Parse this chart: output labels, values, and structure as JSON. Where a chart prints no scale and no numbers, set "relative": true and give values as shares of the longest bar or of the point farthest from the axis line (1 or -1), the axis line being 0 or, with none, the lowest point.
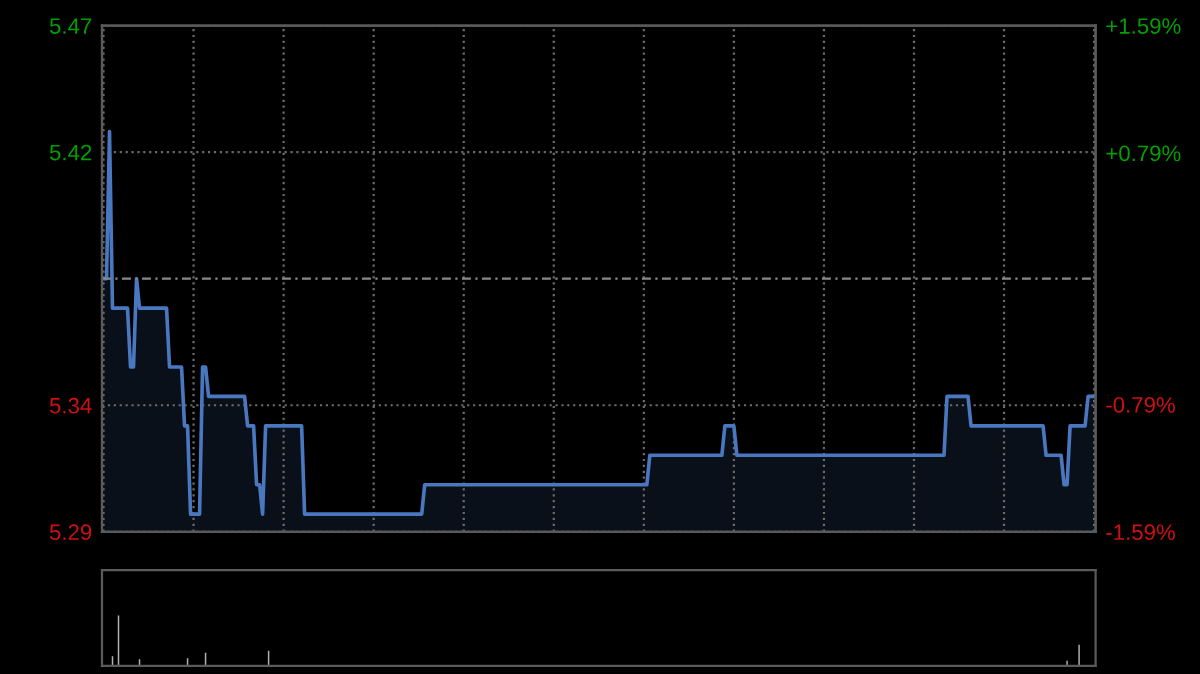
{
  "chart_data": [
    {
      "type": "area",
      "categories": [
        null,
        null,
        null,
        null,
        null,
        null,
        null,
        null,
        null,
        null,
        null,
        null,
        null,
        null,
        null,
        null,
        null,
        null,
        null,
        null,
        null,
        null,
        null,
        null,
        null,
        null,
        null,
        null,
        null,
        null,
        null,
        null,
        null,
        null,
        null,
        null,
        null,
        null,
        null,
        null,
        null,
        null,
        null,
        null,
        null,
        null,
        null,
        null,
        null,
        null,
        null,
        null,
        null,
        null,
        null,
        null,
        null,
        null,
        null,
        null,
        null,
        null,
        null,
        null,
        null,
        null,
        null,
        null,
        null,
        null,
        null,
        null,
        null,
        null,
        null,
        null,
        null,
        null,
        null,
        null,
        null,
        null,
        null,
        null,
        null,
        null,
        null,
        null,
        null,
        null,
        null,
        null,
        null,
        null,
        null,
        null,
        null,
        null,
        null,
        null,
        null,
        null,
        null,
        null,
        null,
        null,
        null,
        null,
        null,
        null,
        null,
        null,
        null,
        null,
        null,
        null,
        null,
        null,
        null,
        null,
        null,
        null,
        null,
        null,
        null,
        null,
        null,
        null,
        null,
        null,
        null,
        null,
        null,
        null,
        null,
        null,
        null,
        null,
        null,
        null,
        null,
        null,
        null,
        null,
        null,
        null,
        null,
        null,
        null,
        null,
        null,
        null,
        null,
        null,
        null,
        null,
        null,
        null,
        null,
        null,
        null,
        null,
        null,
        null,
        null,
        null,
        null,
        null,
        null,
        null,
        null,
        null,
        null,
        null,
        null,
        null,
        null,
        null,
        null,
        null,
        null,
        null,
        null,
        null,
        null,
        null,
        null,
        null,
        null,
        null,
        null,
        null,
        null,
        null,
        null,
        null,
        null,
        null,
        null,
        null,
        null,
        null,
        null,
        null,
        null,
        null,
        null,
        null,
        null,
        null,
        null,
        null,
        null,
        null,
        null,
        null,
        null,
        null,
        null,
        null,
        null,
        null,
        null,
        null,
        null,
        null,
        null,
        null,
        null,
        null,
        null,
        null,
        null,
        null,
        null,
        null,
        null,
        null,
        null,
        null,
        null,
        null,
        null,
        null,
        null,
        null,
        null,
        null,
        null,
        null,
        null,
        null,
        null,
        null,
        null,
        null,
        null,
        null,
        null,
        null,
        null,
        null,
        null,
        null,
        null,
        null,
        null,
        null,
        null,
        null,
        null,
        null,
        null,
        null,
        null,
        null,
        null,
        null,
        null,
        null,
        null,
        null,
        null,
        null,
        null,
        null,
        null,
        null,
        null,
        null,
        null,
        null,
        null,
        null,
        null,
        null,
        null,
        null,
        null,
        null,
        null,
        null,
        null,
        null,
        null,
        null,
        null,
        null,
        null,
        null,
        null,
        null,
        null,
        null,
        null,
        null,
        null,
        null,
        null,
        null,
        null,
        null,
        null,
        null,
        null,
        null,
        null,
        null,
        null,
        null,
        null
      ],
      "series": [
        {
          "color": "#4a78c0",
          "values": [
            5.38,
            5.38,
            5.43,
            5.37,
            5.37,
            5.37,
            5.37,
            5.37,
            5.37,
            5.35,
            5.35,
            5.38,
            5.37,
            5.37,
            5.37,
            5.37,
            5.37,
            5.37,
            5.37,
            5.37,
            5.37,
            5.37,
            5.35,
            5.35,
            5.35,
            5.35,
            5.35,
            5.33,
            5.33,
            5.3,
            5.3,
            5.3,
            5.3,
            5.35,
            5.35,
            5.34,
            5.34,
            5.34,
            5.34,
            5.34,
            5.34,
            5.34,
            5.34,
            5.34,
            5.34,
            5.34,
            5.34,
            5.34,
            5.33,
            5.33,
            5.33,
            5.31,
            5.31,
            5.3,
            5.33,
            5.33,
            5.33,
            5.33,
            5.33,
            5.33,
            5.33,
            5.33,
            5.33,
            5.33,
            5.33,
            5.33,
            5.33,
            5.3,
            5.3,
            5.3,
            5.3,
            5.3,
            5.3,
            5.3,
            5.3,
            5.3,
            5.3,
            5.3,
            5.3,
            5.3,
            5.3,
            5.3,
            5.3,
            5.3,
            5.3,
            5.3,
            5.3,
            5.3,
            5.3,
            5.3,
            5.3,
            5.3,
            5.3,
            5.3,
            5.3,
            5.3,
            5.3,
            5.3,
            5.3,
            5.3,
            5.3,
            5.3,
            5.3,
            5.3,
            5.3,
            5.3,
            5.3,
            5.31,
            5.31,
            5.31,
            5.31,
            5.31,
            5.31,
            5.31,
            5.31,
            5.31,
            5.31,
            5.31,
            5.31,
            5.31,
            5.31,
            5.31,
            5.31,
            5.31,
            5.31,
            5.31,
            5.31,
            5.31,
            5.31,
            5.31,
            5.31,
            5.31,
            5.31,
            5.31,
            5.31,
            5.31,
            5.31,
            5.31,
            5.31,
            5.31,
            5.31,
            5.31,
            5.31,
            5.31,
            5.31,
            5.31,
            5.31,
            5.31,
            5.31,
            5.31,
            5.31,
            5.31,
            5.31,
            5.31,
            5.31,
            5.31,
            5.31,
            5.31,
            5.31,
            5.31,
            5.31,
            5.31,
            5.31,
            5.31,
            5.31,
            5.31,
            5.31,
            5.31,
            5.31,
            5.31,
            5.31,
            5.31,
            5.31,
            5.31,
            5.31,
            5.31,
            5.31,
            5.31,
            5.31,
            5.31,
            5.31,
            5.31,
            5.32,
            5.32,
            5.32,
            5.32,
            5.32,
            5.32,
            5.32,
            5.32,
            5.32,
            5.32,
            5.32,
            5.32,
            5.32,
            5.32,
            5.32,
            5.32,
            5.32,
            5.32,
            5.32,
            5.32,
            5.32,
            5.32,
            5.32,
            5.32,
            5.32,
            5.33,
            5.33,
            5.33,
            5.33,
            5.32,
            5.32,
            5.32,
            5.32,
            5.32,
            5.32,
            5.32,
            5.32,
            5.32,
            5.32,
            5.32,
            5.32,
            5.32,
            5.32,
            5.32,
            5.32,
            5.32,
            5.32,
            5.32,
            5.32,
            5.32,
            5.32,
            5.32,
            5.32,
            5.32,
            5.32,
            5.32,
            5.32,
            5.32,
            5.32,
            5.32,
            5.32,
            5.32,
            5.32,
            5.32,
            5.32,
            5.32,
            5.32,
            5.32,
            5.32,
            5.32,
            5.32,
            5.32,
            5.32,
            5.32,
            5.32,
            5.32,
            5.32,
            5.32,
            5.32,
            5.32,
            5.32,
            5.32,
            5.32,
            5.32,
            5.32,
            5.32,
            5.32,
            5.32,
            5.32,
            5.32,
            5.32,
            5.32,
            5.32,
            5.32,
            5.32,
            5.32,
            5.32,
            5.32,
            5.32,
            5.34,
            5.34,
            5.34,
            5.34,
            5.34,
            5.34,
            5.34,
            5.34,
            5.33,
            5.33,
            5.33,
            5.33,
            5.33,
            5.33,
            5.33,
            5.33,
            5.33,
            5.33,
            5.33,
            5.33,
            5.33,
            5.33,
            5.33,
            5.33,
            5.33,
            5.33,
            5.33,
            5.33,
            5.33,
            5.33,
            5.33,
            5.33,
            5.33,
            5.32,
            5.32,
            5.32,
            5.32,
            5.32,
            5.32,
            5.31,
            5.31,
            5.33,
            5.33,
            5.33,
            5.33,
            5.33,
            5.33,
            5.34,
            5.34,
            5.34
          ]
        }
      ],
      "ylim": [
        5.294,
        5.466
      ],
      "yticks": [
        {
          "value": 5.466,
          "label": "5.47"
        },
        {
          "value": 5.423,
          "label": "5.42"
        },
        {
          "value": 5.337,
          "label": "5.34"
        },
        {
          "value": 5.294,
          "label": "5.29"
        }
      ],
      "y2lim": [
        -1.59,
        1.59
      ],
      "y2ticks": [
        {
          "value": 1.59,
          "label": "+1.59%"
        },
        {
          "value": 0.79,
          "label": "+0.79%"
        },
        {
          "value": -0.79,
          "label": "-0.79%"
        },
        {
          "value": -1.59,
          "label": "-1.59%"
        }
      ],
      "ref_lines": [
        {
          "axis": "y2",
          "value": 0,
          "line_style": "dashed"
        }
      ],
      "grid": true
    },
    {
      "type": "bar",
      "relative": true,
      "categories": [
        null,
        null,
        null,
        null,
        null,
        null,
        null,
        null,
        null,
        null,
        null,
        null,
        null,
        null,
        null,
        null,
        null,
        null,
        null,
        null,
        null,
        null,
        null,
        null,
        null,
        null,
        null,
        null,
        null,
        null,
        null,
        null,
        null,
        null,
        null,
        null,
        null,
        null,
        null,
        null,
        null,
        null,
        null,
        null,
        null,
        null,
        null,
        null,
        null,
        null,
        null,
        null,
        null,
        null,
        null,
        null,
        null,
        null,
        null,
        null,
        null,
        null,
        null,
        null,
        null,
        null,
        null,
        null,
        null,
        null,
        null,
        null,
        null,
        null,
        null,
        null,
        null,
        null,
        null,
        null,
        null,
        null,
        null,
        null,
        null,
        null,
        null,
        null,
        null,
        null,
        null,
        null,
        null,
        null,
        null,
        null,
        null,
        null,
        null,
        null,
        null,
        null,
        null,
        null,
        null,
        null,
        null,
        null,
        null,
        null,
        null,
        null,
        null,
        null,
        null,
        null,
        null,
        null,
        null,
        null,
        null,
        null,
        null,
        null,
        null,
        null,
        null,
        null,
        null,
        null,
        null,
        null,
        null,
        null,
        null,
        null,
        null,
        null,
        null,
        null,
        null,
        null,
        null,
        null,
        null,
        null,
        null,
        null,
        null,
        null,
        null,
        null,
        null,
        null,
        null,
        null,
        null,
        null,
        null,
        null,
        null,
        null,
        null,
        null,
        null,
        null,
        null,
        null,
        null,
        null,
        null,
        null,
        null,
        null,
        null,
        null,
        null,
        null,
        null,
        null,
        null,
        null,
        null,
        null,
        null,
        null,
        null,
        null,
        null,
        null,
        null,
        null,
        null,
        null,
        null,
        null,
        null,
        null,
        null,
        null,
        null,
        null,
        null,
        null,
        null,
        null,
        null,
        null,
        null,
        null,
        null,
        null,
        null,
        null,
        null,
        null,
        null,
        null,
        null,
        null,
        null,
        null,
        null,
        null,
        null,
        null,
        null,
        null,
        null,
        null,
        null,
        null,
        null,
        null,
        null,
        null,
        null,
        null,
        null,
        null,
        null,
        null,
        null,
        null,
        null,
        null,
        null,
        null,
        null,
        null,
        null,
        null,
        null,
        null,
        null,
        null,
        null,
        null,
        null,
        null,
        null,
        null,
        null,
        null,
        null,
        null,
        null,
        null,
        null,
        null,
        null,
        null,
        null,
        null,
        null,
        null,
        null,
        null,
        null,
        null,
        null,
        null,
        null,
        null,
        null,
        null,
        null,
        null,
        null,
        null,
        null,
        null,
        null,
        null,
        null,
        null,
        null,
        null,
        null,
        null,
        null,
        null,
        null,
        null,
        null,
        null,
        null,
        null,
        null,
        null,
        null,
        null,
        null,
        null,
        null,
        null,
        null,
        null,
        null,
        null,
        null,
        null,
        null,
        null,
        null,
        null,
        null,
        null,
        null,
        null,
        null
      ],
      "series": [
        {
          "color": "#b0b0b0",
          "values": [
            0.02,
            0.02,
            0.02,
            0.19,
            0.02,
            1,
            0.02,
            0.02,
            0.02,
            0.02,
            0.02,
            0.02,
            0.13,
            0.02,
            0.02,
            0.02,
            0.02,
            0.02,
            0.02,
            0.02,
            0.02,
            0.02,
            0.02,
            0.02,
            0.02,
            0.02,
            0.02,
            0.02,
            0.15,
            0.02,
            0.02,
            0.02,
            0.02,
            0.02,
            0.26,
            0.02,
            0.02,
            0.02,
            0.02,
            0.02,
            0.02,
            0.02,
            0.02,
            0.02,
            0.02,
            0.02,
            0.02,
            0.02,
            0.02,
            0.02,
            0.02,
            0.02,
            0.02,
            0.02,
            0.02,
            0.3,
            0.02,
            0.02,
            0.02,
            0.02,
            0.02,
            0.02,
            0.02,
            0.02,
            0.02,
            0.02,
            0.02,
            0.02,
            0.02,
            0.02,
            0.02,
            0.02,
            0.02,
            0.02,
            0.02,
            0.02,
            0.02,
            0.02,
            0.02,
            0.02,
            0.02,
            0.02,
            0.02,
            0.02,
            0.02,
            0.02,
            0.02,
            0.02,
            0.02,
            0.02,
            0.02,
            0.02,
            0.02,
            0.02,
            0.02,
            0.02,
            0.02,
            0.02,
            0.02,
            0.02,
            0.02,
            0.02,
            0.02,
            0.02,
            0.02,
            0.02,
            0.02,
            0.02,
            0.02,
            0.02,
            0.02,
            0.02,
            0.02,
            0.02,
            0.02,
            0.02,
            0.02,
            0.02,
            0.02,
            0.02,
            0.02,
            0.02,
            0.02,
            0.02,
            0.02,
            0.02,
            0.02,
            0.02,
            0.02,
            0.02,
            0.02,
            0.02,
            0.02,
            0.02,
            0.02,
            0.02,
            0.02,
            0.02,
            0.02,
            0.02,
            0.02,
            0.02,
            0.02,
            0.02,
            0.02,
            0.02,
            0.02,
            0.02,
            0.02,
            0.02,
            0.02,
            0.02,
            0.02,
            0.02,
            0.02,
            0.02,
            0.02,
            0.02,
            0.02,
            0.02,
            0.02,
            0.02,
            0.02,
            0.02,
            0.02,
            0.02,
            0.02,
            0.02,
            0.02,
            0.02,
            0.02,
            0.02,
            0.02,
            0.02,
            0.02,
            0.02,
            0.02,
            0.02,
            0.02,
            0.02,
            0.02,
            0.02,
            0.02,
            0.02,
            0.02,
            0.02,
            0.02,
            0.02,
            0.02,
            0.02,
            0.02,
            0.02,
            0.02,
            0.02,
            0.02,
            0.02,
            0.02,
            0.02,
            0.02,
            0.02,
            0.02,
            0.02,
            0.02,
            0.02,
            0.02,
            0.02,
            0.02,
            0.02,
            0.02,
            0.02,
            0.02,
            0.02,
            0.02,
            0.02,
            0.02,
            0.02,
            0.02,
            0.02,
            0.02,
            0.02,
            0.02,
            0.02,
            0.02,
            0.02,
            0.02,
            0.02,
            0.02,
            0.02,
            0.02,
            0.02,
            0.02,
            0.02,
            0.02,
            0.02,
            0.02,
            0.02,
            0.02,
            0.02,
            0.02,
            0.02,
            0.02,
            0.02,
            0.02,
            0.02,
            0.02,
            0.02,
            0.02,
            0.02,
            0.02,
            0.02,
            0.02,
            0.02,
            0.02,
            0.02,
            0.02,
            0.02,
            0.02,
            0.02,
            0.02,
            0.02,
            0.02,
            0.02,
            0.02,
            0.02,
            0.02,
            0.02,
            0.02,
            0.02,
            0.02,
            0.02,
            0.02,
            0.02,
            0.02,
            0.02,
            0.02,
            0.02,
            0.02,
            0.02,
            0.02,
            0.02,
            0.02,
            0.02,
            0.02,
            0.02,
            0.02,
            0.02,
            0.02,
            0.02,
            0.02,
            0.02,
            0.02,
            0.02,
            0.02,
            0.02,
            0.02,
            0.02,
            0.02,
            0.02,
            0.02,
            0.02,
            0.02,
            0.02,
            0.02,
            0.02,
            0.02,
            0.02,
            0.02,
            0.02,
            0.02,
            0.02,
            0.02,
            0.02,
            0.02,
            0.02,
            0.02,
            0.02,
            0.02,
            0.02,
            0.02,
            0.02,
            0.02,
            0.1,
            0.02,
            0.02,
            0.02,
            0.42,
            0.02,
            0.02,
            0.02,
            0.02,
            0.02
          ]
        }
      ]
    }
  ]
}
